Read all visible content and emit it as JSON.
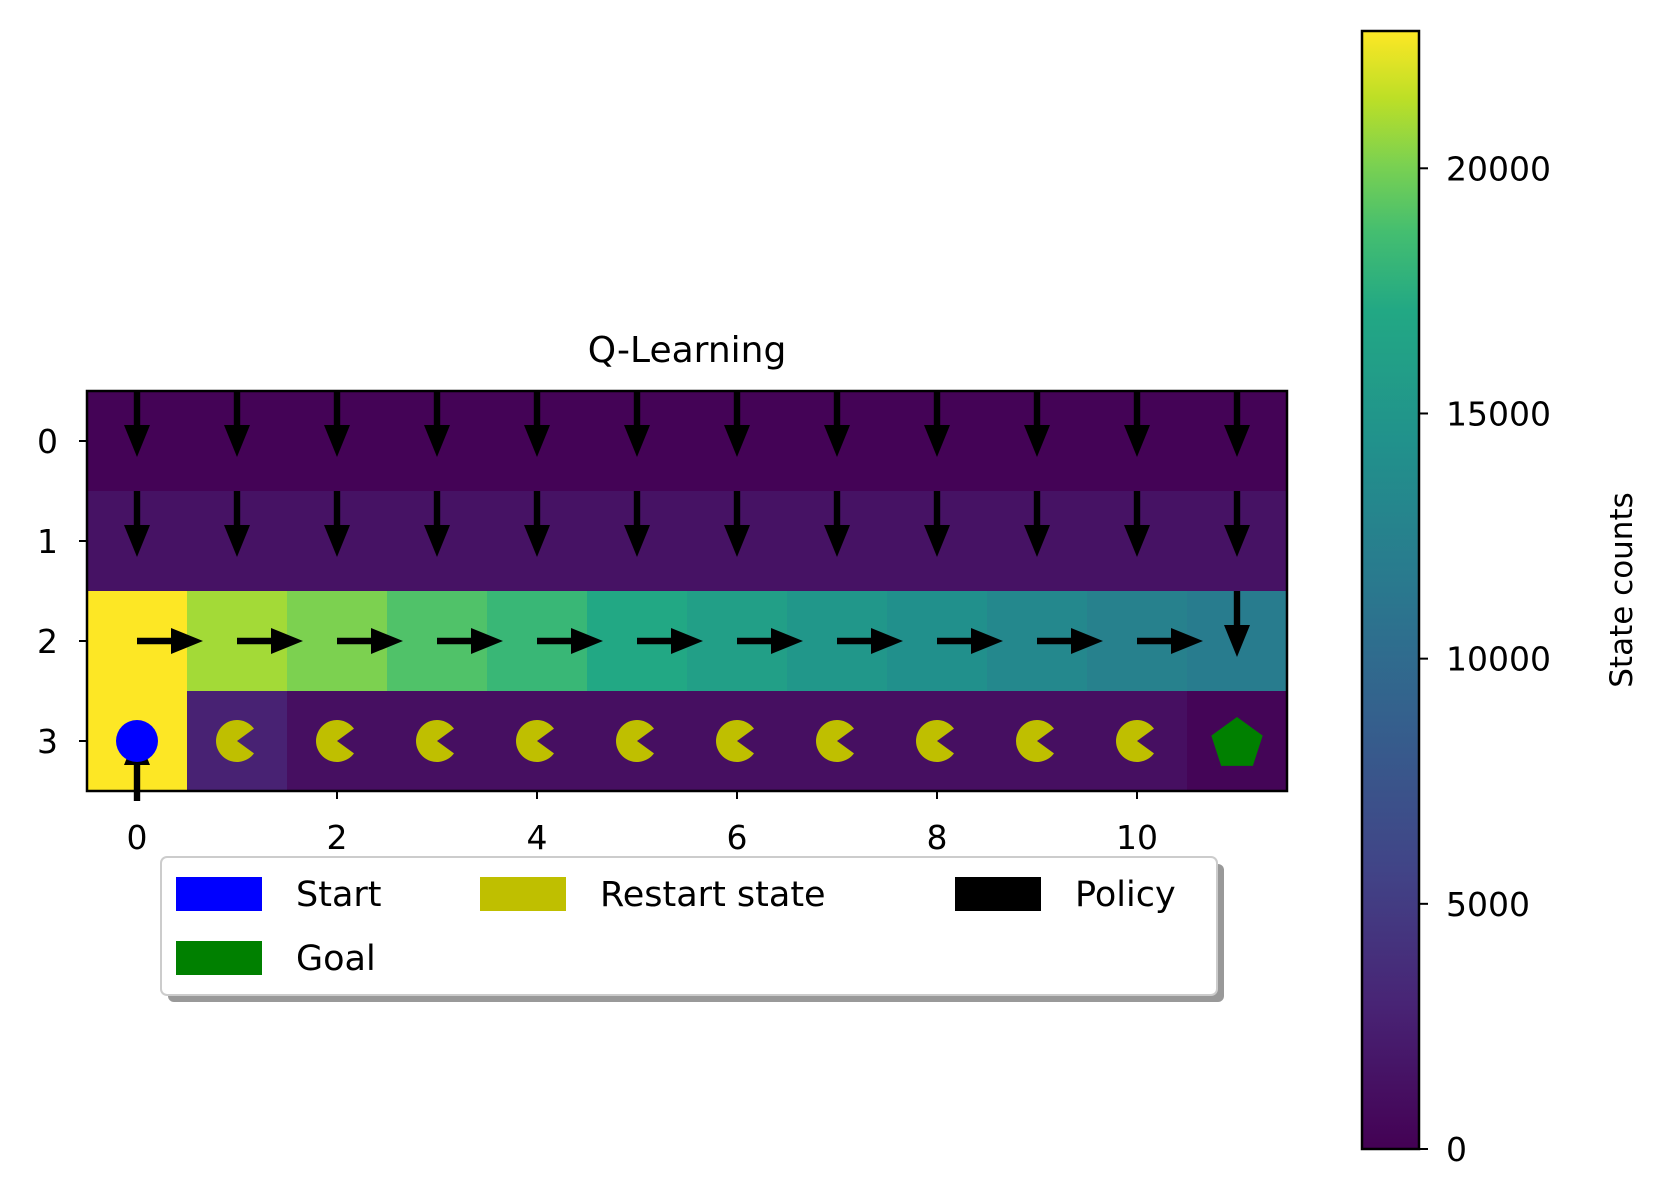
{
  "chart_data": {
    "type": "heatmap",
    "title": "Q-Learning",
    "grid": {
      "rows": 4,
      "cols": 12,
      "values": [
        [
          150,
          150,
          150,
          150,
          150,
          150,
          150,
          150,
          150,
          150,
          150,
          150
        ],
        [
          1400,
          1400,
          1400,
          1400,
          1400,
          1400,
          1400,
          1400,
          1400,
          1400,
          1400,
          1400
        ],
        [
          22800,
          20900,
          20100,
          19000,
          18200,
          17100,
          16000,
          15100,
          14300,
          13300,
          12500,
          11900
        ],
        [
          22800,
          2800,
          1200,
          1200,
          1200,
          1200,
          1200,
          1200,
          1200,
          1200,
          1200,
          300
        ]
      ]
    },
    "x_ticks": [
      "0",
      "2",
      "4",
      "6",
      "8",
      "10"
    ],
    "y_ticks": [
      "0",
      "1",
      "2",
      "3"
    ],
    "colorbar": {
      "label": "State counts",
      "min": 0,
      "max": 22800,
      "ticks": [
        "0",
        "5000",
        "10000",
        "15000",
        "20000"
      ],
      "colormap": "viridis"
    },
    "policy": [
      [
        "down",
        "down",
        "down",
        "down",
        "down",
        "down",
        "down",
        "down",
        "down",
        "down",
        "down",
        "down"
      ],
      [
        "down",
        "down",
        "down",
        "down",
        "down",
        "down",
        "down",
        "down",
        "down",
        "down",
        "down",
        "down"
      ],
      [
        "right",
        "right",
        "right",
        "right",
        "right",
        "right",
        "right",
        "right",
        "right",
        "right",
        "right",
        "down"
      ],
      [
        "up",
        "",
        "",
        "",
        "",
        "",
        "",
        "",
        "",
        "",
        "",
        ""
      ]
    ],
    "markers": {
      "start": {
        "row": 3,
        "col": 0,
        "shape": "circle",
        "color": "#0000ff"
      },
      "goal": {
        "row": 3,
        "col": 11,
        "shape": "pentagon",
        "color": "#008000"
      },
      "restart": {
        "row": 3,
        "cols": [
          1,
          2,
          3,
          4,
          5,
          6,
          7,
          8,
          9,
          10
        ],
        "shape": "pacman",
        "color": "#bfbf00"
      }
    },
    "legend": {
      "placement": "below",
      "items": [
        {
          "label": "Start",
          "color": "#0000ff"
        },
        {
          "label": "Restart state",
          "color": "#bfbf00"
        },
        {
          "label": "Policy",
          "color": "#000000"
        },
        {
          "label": "Goal",
          "color": "#008000"
        }
      ]
    }
  }
}
